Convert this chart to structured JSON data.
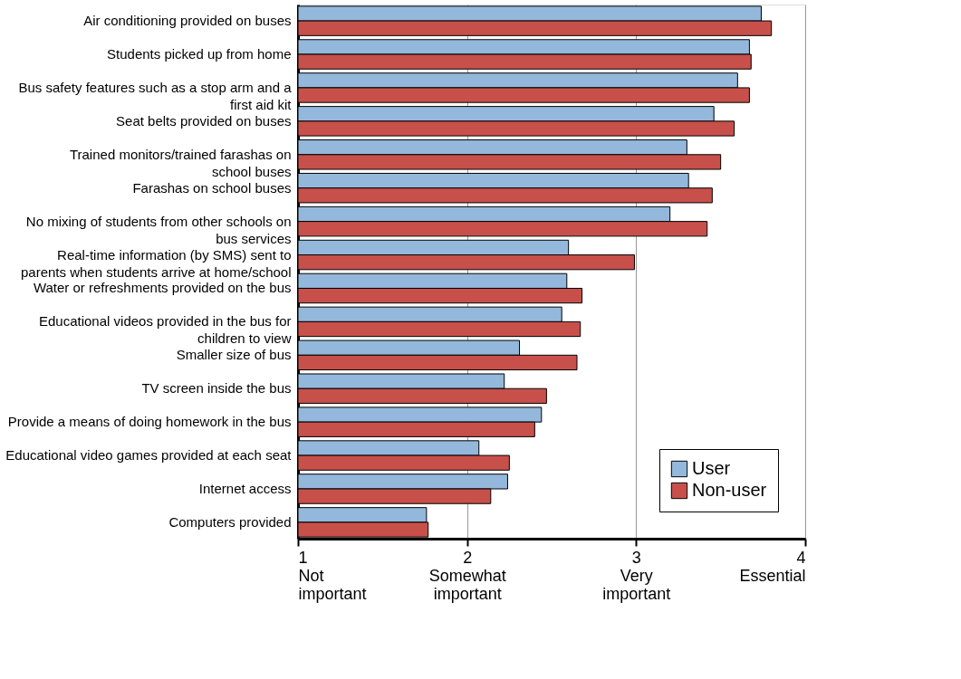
{
  "chart_data": {
    "type": "bar",
    "orientation": "horizontal",
    "categories": [
      "Air conditioning provided on buses",
      "Students picked up from home",
      "Bus safety features such as a stop arm and a\nfirst aid kit",
      "Seat belts provided on buses",
      "Trained monitors/trained farashas on\nschool buses",
      "Farashas on school buses",
      "No mixing of students from other schools on\nbus services",
      "Real-time information (by SMS) sent to\nparents when students arrive at home/school",
      "Water or refreshments provided on the bus",
      "Educational videos provided in the bus for\nchildren to view",
      "Smaller size of bus",
      "TV screen inside the bus",
      "Provide a means of doing homework in the bus",
      "Educational video games provided at each seat",
      "Internet access",
      "Computers provided"
    ],
    "series": [
      {
        "name": "User",
        "color": "#94b8dc",
        "values": [
          3.74,
          3.67,
          3.6,
          3.46,
          3.3,
          3.31,
          3.2,
          2.6,
          2.59,
          2.56,
          2.31,
          2.22,
          2.44,
          2.07,
          2.24,
          1.76
        ]
      },
      {
        "name": "Non-user",
        "color": "#c8504a",
        "values": [
          3.8,
          3.68,
          3.67,
          3.58,
          3.5,
          3.45,
          3.42,
          2.99,
          2.68,
          2.67,
          2.65,
          2.47,
          2.4,
          2.25,
          2.14,
          1.77
        ]
      }
    ],
    "xlim": [
      1,
      4
    ],
    "xticks": [
      {
        "value": 1,
        "label": "1\nNot\nimportant"
      },
      {
        "value": 2,
        "label": "2\nSomewhat\nimportant"
      },
      {
        "value": 3,
        "label": "3\nVery\nimportant"
      },
      {
        "value": 4,
        "label": "4\nEssential"
      }
    ],
    "grid": "x",
    "legend": "bottom right"
  }
}
